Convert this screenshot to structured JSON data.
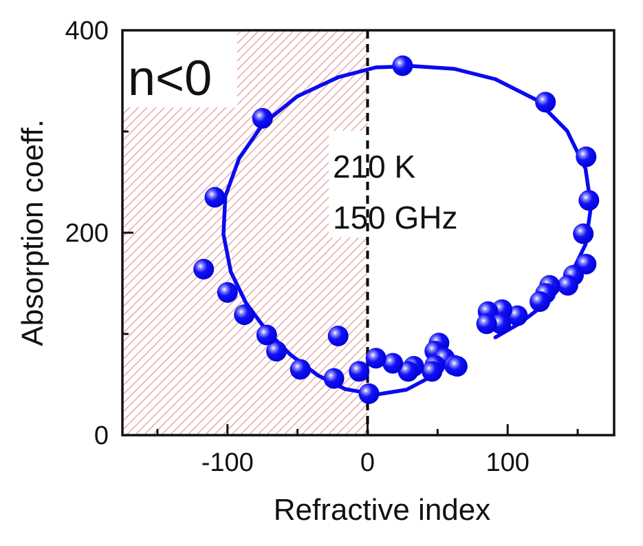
{
  "chart_data": {
    "type": "scatter",
    "title": "",
    "xlabel": "Refractive index",
    "ylabel": "Absorption coeff.",
    "xlim": [
      -175,
      176
    ],
    "ylim": [
      0,
      400
    ],
    "xticks": [
      -100,
      0,
      100
    ],
    "xtick_labels": [
      "-100",
      "0",
      "100"
    ],
    "yticks": [
      0,
      200,
      400
    ],
    "ytick_labels": [
      "0",
      "200",
      "400"
    ],
    "grid": false,
    "shaded_region": {
      "label": "n<0",
      "x_range": [
        -175,
        0
      ],
      "color": "#e07a7a"
    },
    "reference_line": {
      "x": 0,
      "style": "dashed"
    },
    "annotations": [
      "210 K",
      "150 GHz"
    ],
    "series": [
      {
        "name": "data",
        "kind": "points",
        "color": "#0a0af0",
        "points": [
          [
            25,
            365
          ],
          [
            127,
            329
          ],
          [
            156,
            275
          ],
          [
            158,
            232
          ],
          [
            154,
            199
          ],
          [
            156,
            169
          ],
          [
            147,
            158
          ],
          [
            143,
            148
          ],
          [
            130,
            148
          ],
          [
            127,
            140
          ],
          [
            123,
            132
          ],
          [
            107,
            118
          ],
          [
            96,
            124
          ],
          [
            86,
            122
          ],
          [
            95,
            110
          ],
          [
            85,
            110
          ],
          [
            51,
            91
          ],
          [
            48,
            83
          ],
          [
            55,
            76
          ],
          [
            48,
            69
          ],
          [
            62,
            69
          ],
          [
            64,
            68
          ],
          [
            46,
            63
          ],
          [
            33,
            68
          ],
          [
            29,
            63
          ],
          [
            18,
            71
          ],
          [
            6,
            76
          ],
          [
            1,
            41
          ],
          [
            -6,
            63
          ],
          [
            -24,
            56
          ],
          [
            -21,
            98
          ],
          [
            -48,
            65
          ],
          [
            -65,
            83
          ],
          [
            -72,
            99
          ],
          [
            -88,
            119
          ],
          [
            -100,
            141
          ],
          [
            -117,
            164
          ],
          [
            -109,
            235
          ],
          [
            -75,
            313
          ]
        ]
      },
      {
        "name": "fit",
        "kind": "line",
        "color": "#0a0af0",
        "points": [
          [
            47.3,
            59.2
          ],
          [
            27.8,
            44.9
          ],
          [
            5.9,
            40.1
          ],
          [
            -16.1,
            45.6
          ],
          [
            -35.6,
            59.2
          ],
          [
            -55.1,
            79.6
          ],
          [
            -72.2,
            103.4
          ],
          [
            -86.8,
            130.6
          ],
          [
            -97.6,
            161.2
          ],
          [
            -102.9,
            198.6
          ],
          [
            -101.5,
            236.1
          ],
          [
            -91.7,
            273.5
          ],
          [
            -74.6,
            307.5
          ],
          [
            -50.2,
            334.7
          ],
          [
            -20.9,
            353.7
          ],
          [
            5.9,
            363.3
          ],
          [
            32.7,
            364.6
          ],
          [
            61.9,
            361.9
          ],
          [
            91.2,
            351.7
          ],
          [
            120.5,
            331.3
          ],
          [
            142.4,
            300.7
          ],
          [
            155.6,
            263.3
          ],
          [
            159.5,
            225.9
          ],
          [
            155.6,
            188.4
          ],
          [
            144.9,
            157.8
          ],
          [
            127.8,
            130.6
          ],
          [
            108.3,
            110.2
          ],
          [
            91.2,
            96.6
          ]
        ]
      }
    ]
  }
}
